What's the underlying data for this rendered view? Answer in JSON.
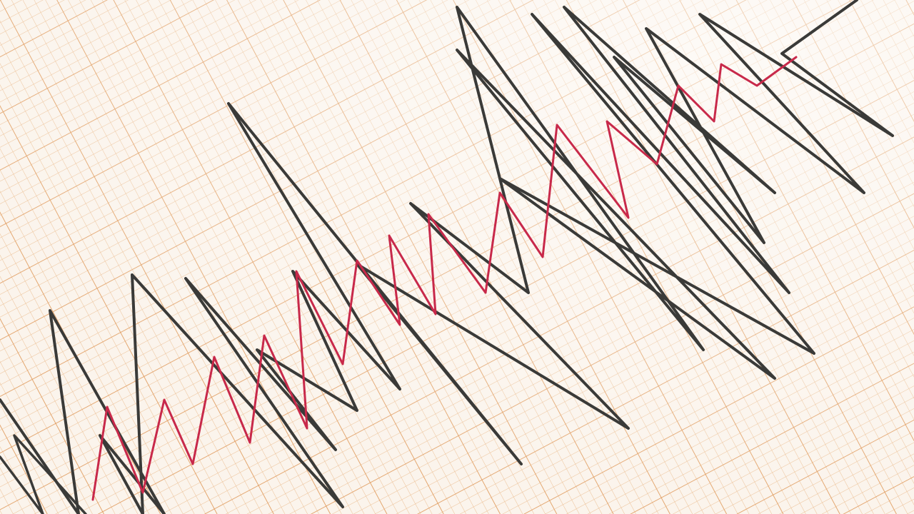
{
  "scene": {
    "subject": "seismograph-trace-on-graph-paper",
    "colors": {
      "paper": "#fbf4ec",
      "grid_minor": "#eab98a",
      "grid_major": "#e09a5c",
      "trace_black": "#3a3a38",
      "trace_red": "#c8294a"
    }
  }
}
